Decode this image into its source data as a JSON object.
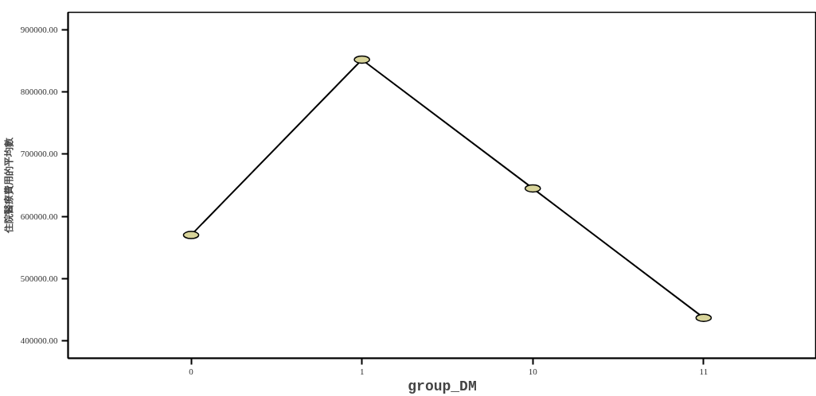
{
  "chart_data": {
    "type": "line",
    "xlabel": "group_DM",
    "ylabel": "住院醫療費用的平均數",
    "categories": [
      "0",
      "1",
      "10",
      "11"
    ],
    "series": [
      {
        "color": "#000000",
        "values": [
          570000,
          852000,
          645000,
          437000
        ]
      }
    ],
    "marker": "circle",
    "line_style": "solid",
    "ylim": [
      372000,
      928000
    ],
    "yticks": [
      {
        "value": 400000,
        "label": "400000.00"
      },
      {
        "value": 500000,
        "label": "500000.00"
      },
      {
        "value": 600000,
        "label": "600000.00"
      },
      {
        "value": 700000,
        "label": "700000.00"
      },
      {
        "value": 800000,
        "label": "800000.00"
      },
      {
        "value": 900000,
        "label": "900000.00"
      }
    ],
    "grid": false
  }
}
